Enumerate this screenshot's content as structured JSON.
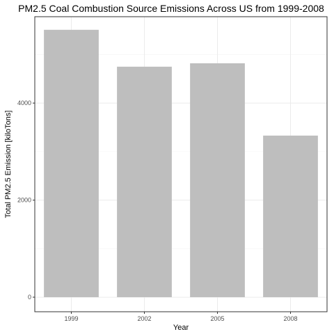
{
  "chart_data": {
    "type": "bar",
    "title": "PM2.5 Coal Combustion Source Emissions Across US from 1999-2008",
    "xlabel": "Year",
    "ylabel": "Total PM2.5 Emission [kiloTons]",
    "categories": [
      "1999",
      "2002",
      "2005",
      "2008"
    ],
    "values": [
      5510,
      4750,
      4820,
      3330
    ],
    "ylim": [
      -300,
      5780
    ],
    "yticks": [
      0,
      2000,
      4000
    ],
    "ytick_labels": [
      "0",
      "2000",
      "4000"
    ],
    "grid": true,
    "legend": "none",
    "bar_color": "#bebebe",
    "theme": "bw"
  }
}
